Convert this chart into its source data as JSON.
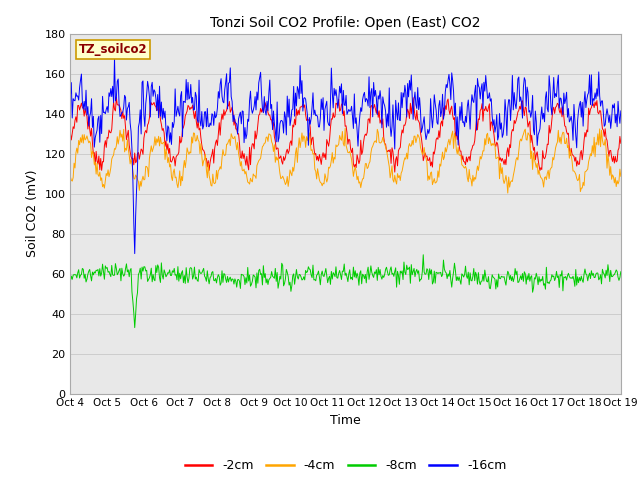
{
  "title": "Tonzi Soil CO2 Profile: Open (East) CO2",
  "xlabel": "Time",
  "ylabel": "Soil CO2 (mV)",
  "ylim": [
    0,
    180
  ],
  "yticks": [
    0,
    20,
    40,
    60,
    80,
    100,
    120,
    140,
    160,
    180
  ],
  "x_labels": [
    "Oct 4",
    "Oct 5",
    "Oct 6",
    "Oct 7",
    "Oct 8",
    "Oct 9",
    "Oct 10",
    "Oct 11",
    "Oct 12",
    "Oct 13",
    "Oct 14",
    "Oct 15",
    "Oct 16",
    "Oct 17",
    "Oct 18",
    "Oct 19"
  ],
  "legend_label": "TZ_soilco2",
  "series_labels": [
    "-2cm",
    "-4cm",
    "-8cm",
    "-16cm"
  ],
  "series_colors": [
    "#ff0000",
    "#ffa500",
    "#00cc00",
    "#0000ff"
  ],
  "n_points": 600,
  "n_days": 15,
  "plot_bg_color": "#e8e8e8",
  "spike_day": 1.75,
  "red_base": 130,
  "red_amp": 14,
  "orange_base": 117,
  "orange_amp": 11,
  "green_base": 59,
  "blue_base": 143,
  "blue_amp": 8
}
